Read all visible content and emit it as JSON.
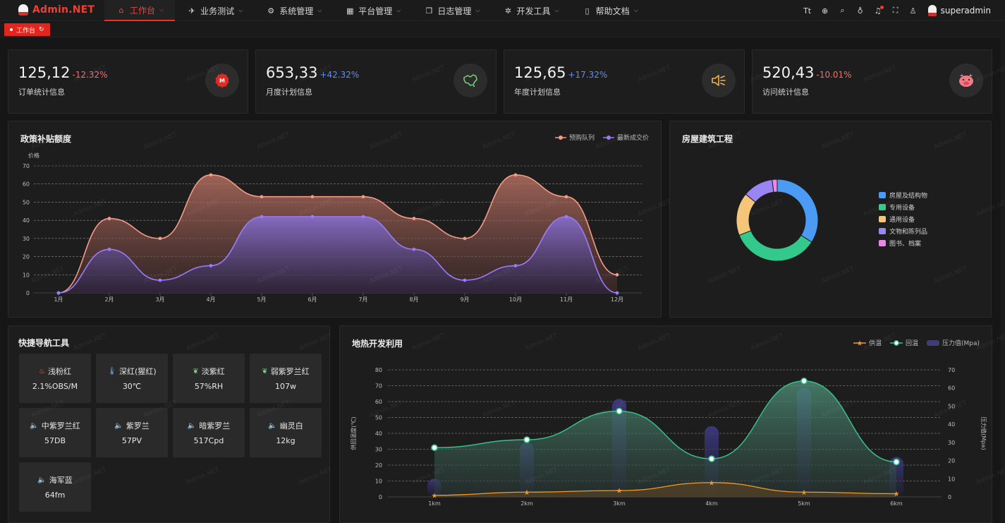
{
  "app": {
    "title": "Admin.NET",
    "user": "superadmin"
  },
  "nav": {
    "items": [
      {
        "label": "工作台",
        "icon": "home-icon",
        "glyph": "⌂",
        "active": true,
        "caret": true
      },
      {
        "label": "业务测试",
        "icon": "send-icon",
        "glyph": "✈",
        "active": false,
        "caret": true
      },
      {
        "label": "系统管理",
        "icon": "gear-icon",
        "glyph": "⚙",
        "active": false,
        "caret": true
      },
      {
        "label": "平台管理",
        "icon": "grid-icon",
        "glyph": "▦",
        "active": false,
        "caret": true
      },
      {
        "label": "日志管理",
        "icon": "copy-icon",
        "glyph": "❐",
        "active": false,
        "caret": true
      },
      {
        "label": "开发工具",
        "icon": "cog-icon",
        "glyph": "✲",
        "active": false,
        "caret": true
      },
      {
        "label": "帮助文档",
        "icon": "doc-icon",
        "glyph": "▯",
        "active": false,
        "caret": true
      }
    ],
    "tools": [
      {
        "name": "font-size-icon",
        "glyph": "Tt"
      },
      {
        "name": "language-icon",
        "glyph": "⊕"
      },
      {
        "name": "search-icon",
        "glyph": "⌕"
      },
      {
        "name": "theme-icon",
        "glyph": "♁"
      },
      {
        "name": "bell-icon",
        "glyph": "♫"
      },
      {
        "name": "fullscreen-icon",
        "glyph": "⛶"
      },
      {
        "name": "user-icon",
        "glyph": "♙"
      }
    ]
  },
  "tags": {
    "active_tag": "工作台"
  },
  "stats": [
    {
      "value": "125,12",
      "change": "-12.32%",
      "change_color": "#f56c6c",
      "label": "订单统计信息",
      "icon": "logo-icon"
    },
    {
      "value": "653,33",
      "change": "+42.32%",
      "change_color": "#5c8ff7",
      "label": "月度计划信息",
      "icon": "map-icon"
    },
    {
      "value": "125,65",
      "change": "+17.32%",
      "change_color": "#5c8ff7",
      "label": "年度计划信息",
      "icon": "speaker-icon"
    },
    {
      "value": "520,43",
      "change": "-10.01%",
      "change_color": "#f56c6c",
      "label": "访问统计信息",
      "icon": "pig-icon"
    }
  ],
  "line_chart": {
    "title": "政策补贴额度",
    "chart_data": {
      "type": "area",
      "title": "政策补贴额度",
      "ylabel": "价格",
      "ylim": [
        0,
        70
      ],
      "yticks": [
        0,
        10,
        20,
        30,
        40,
        50,
        60,
        70
      ],
      "categories": [
        "1月",
        "2月",
        "3月",
        "4月",
        "5月",
        "6月",
        "7月",
        "8月",
        "9月",
        "10月",
        "11月",
        "12月"
      ],
      "series": [
        {
          "name": "预购队列",
          "color": "#f59a86",
          "values": [
            0,
            41,
            30,
            65,
            53,
            53,
            53,
            41,
            30,
            65,
            53,
            10
          ]
        },
        {
          "name": "最新成交价",
          "color": "#9a7cf5",
          "values": [
            0,
            24,
            7,
            15,
            42,
            42,
            42,
            24,
            7,
            15,
            42,
            0
          ]
        }
      ],
      "grid": true,
      "legend": "top-right"
    }
  },
  "pie_chart": {
    "title": "房屋建筑工程",
    "chart_data": {
      "type": "pie",
      "title": "房屋建筑工程",
      "labels": [
        "房屋及结构物",
        "专用设备",
        "通用设备",
        "文物和陈列品",
        "图书、档案"
      ],
      "values": [
        34,
        35,
        17,
        12,
        2
      ],
      "colors": [
        "#4b9bf5",
        "#34c98c",
        "#f5c57a",
        "#9a85f5",
        "#e68ae6"
      ],
      "legend": "right"
    }
  },
  "quick_nav": {
    "title": "快捷导航工具",
    "tiles": [
      {
        "name": "浅粉红",
        "value": "2.1%OBS/M",
        "icon": "flask-icon",
        "glyph": "♨",
        "color": "#f56c6c"
      },
      {
        "name": "深红(猩红)",
        "value": "30℃",
        "icon": "thermometer-icon",
        "glyph": "🌡",
        "color": "#7fb2f7"
      },
      {
        "name": "淡紫红",
        "value": "57%RH",
        "icon": "leaf-icon",
        "glyph": "❦",
        "color": "#7fd18f"
      },
      {
        "name": "弱紫罗兰红",
        "value": "107w",
        "icon": "leaf-icon",
        "glyph": "❦",
        "color": "#7fd18f"
      },
      {
        "name": "中紫罗兰红",
        "value": "57DB",
        "icon": "speaker-icon",
        "glyph": "🔈",
        "color": "#f5c57a"
      },
      {
        "name": "紫罗兰",
        "value": "57PV",
        "icon": "speaker-icon",
        "glyph": "🔈",
        "color": "#f5c57a"
      },
      {
        "name": "暗紫罗兰",
        "value": "517Cpd",
        "icon": "speaker-icon",
        "glyph": "🔈",
        "color": "#f5c57a"
      },
      {
        "name": "幽灵白",
        "value": "12kg",
        "icon": "speaker-icon",
        "glyph": "🔈",
        "color": "#f5c57a"
      },
      {
        "name": "海军蓝",
        "value": "64fm",
        "icon": "speaker-icon",
        "glyph": "🔈",
        "color": "#f5c57a"
      }
    ]
  },
  "geo_chart": {
    "title": "地热开发利用",
    "chart_data": {
      "type": "line",
      "title": "地热开发利用",
      "x": [
        "1km",
        "2km",
        "3km",
        "4km",
        "5km",
        "6km"
      ],
      "y_left": {
        "label": "供回温度(℃)",
        "ylim": [
          0,
          80
        ],
        "ticks": [
          0,
          10,
          20,
          30,
          40,
          50,
          60,
          70,
          80
        ]
      },
      "y_right": {
        "label": "压力值(Mpa)",
        "ylim": [
          0,
          70
        ],
        "ticks": [
          0,
          10,
          20,
          30,
          40,
          50,
          60,
          70
        ]
      },
      "series": [
        {
          "name": "供温",
          "type": "line",
          "axis": "left",
          "color": "#f59a23",
          "values": [
            1,
            3,
            4,
            9,
            3,
            2
          ]
        },
        {
          "name": "回温",
          "type": "line",
          "axis": "left",
          "color": "#36c08a",
          "values": [
            31,
            36,
            54,
            24,
            73,
            22
          ]
        },
        {
          "name": "压力值(Mpa)",
          "type": "bar",
          "axis": "right",
          "color": "#3f3d78",
          "values": [
            10,
            30,
            54,
            39,
            60,
            22
          ]
        }
      ],
      "grid": true,
      "legend": "top-right"
    }
  }
}
